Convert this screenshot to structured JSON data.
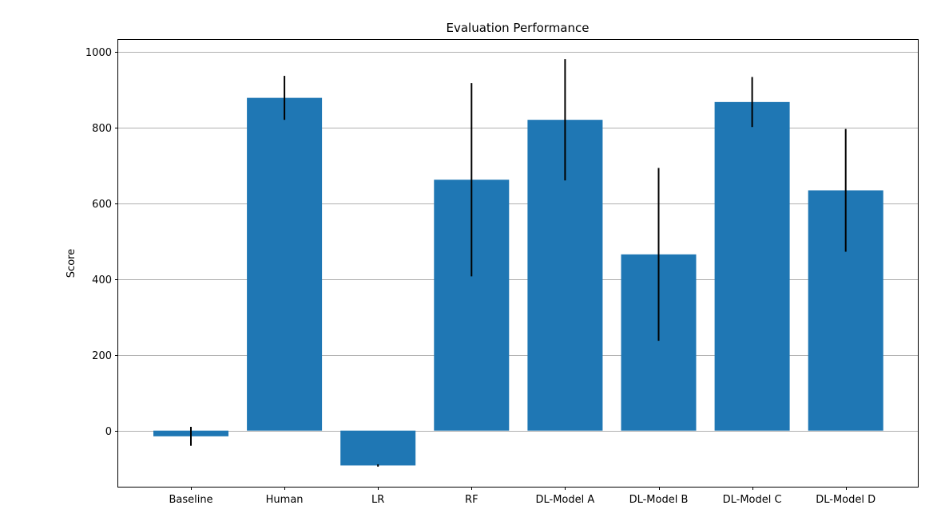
{
  "chart_data": {
    "type": "bar",
    "title": "Evaluation Performance",
    "xlabel": "",
    "ylabel": "Score",
    "categories": [
      "Baseline",
      "Human",
      "LR",
      "RF",
      "DL-Model A",
      "DL-Model B",
      "DL-Model C",
      "DL-Model D"
    ],
    "values": [
      -15,
      878,
      -92,
      662,
      820,
      465,
      867,
      634
    ],
    "errors": [
      25,
      58,
      3,
      255,
      160,
      228,
      66,
      162
    ],
    "ylim": [
      -148,
      1033
    ],
    "yticks": [
      0,
      200,
      400,
      600,
      800,
      1000
    ],
    "grid": "y",
    "bar_color": "#1f77b4",
    "error_color": "#000000"
  }
}
